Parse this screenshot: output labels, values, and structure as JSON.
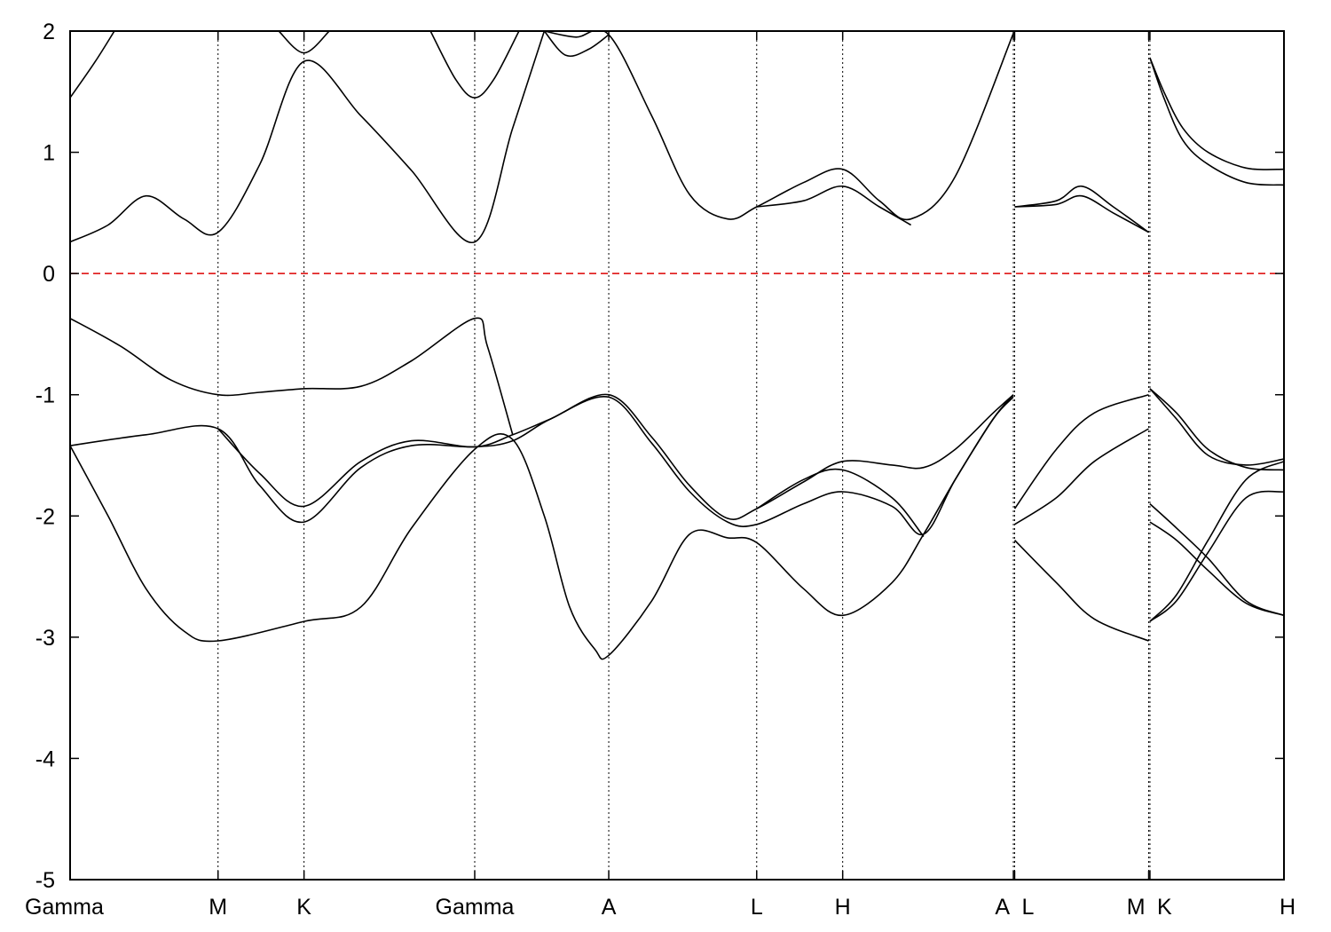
{
  "chart_data": {
    "type": "line",
    "title": "",
    "xlabel": "",
    "ylabel": "",
    "ylim": [
      -5,
      2
    ],
    "yticks": [
      -5,
      -4,
      -3,
      -2,
      -1,
      0,
      1,
      2
    ],
    "grid": "vertical dotted lines at high-symmetry points",
    "legend": "none",
    "high_symmetry_points": [
      {
        "label": "Gamma",
        "x": 0
      },
      {
        "label": "M",
        "x": 1.17
      },
      {
        "label": "K",
        "x": 1.85
      },
      {
        "label": "Gamma",
        "x": 3.2
      },
      {
        "label": "A",
        "x": 4.26
      },
      {
        "label": "L",
        "x": 5.43
      },
      {
        "label": "H",
        "x": 6.11
      },
      {
        "label": "A",
        "x": 7.46
      },
      {
        "label": "L",
        "x": 7.47
      },
      {
        "label": "M",
        "x": 8.53
      },
      {
        "label": "K",
        "x": 8.54
      },
      {
        "label": "H",
        "x": 9.6
      }
    ],
    "fermi_level": {
      "y": 0,
      "color": "#dd0000"
    },
    "bands": [
      {
        "x": [
          0,
          0.3,
          0.6,
          0.9,
          1.17,
          1.85,
          2.3,
          2.7,
          3.2,
          3.5,
          3.75,
          3.95,
          4.15,
          4.26,
          4.6,
          4.9,
          5.2,
          5.43,
          5.8,
          6.11,
          6.5,
          6.75,
          7.0,
          7.3,
          7.46
        ],
        "y": [
          -1.42,
          -2.0,
          -2.6,
          -2.95,
          -3.03,
          -2.87,
          -2.75,
          -2.1,
          -1.45,
          -1.37,
          -2.0,
          -2.75,
          -3.1,
          -3.15,
          -2.7,
          -2.15,
          -2.18,
          -2.22,
          -2.6,
          -2.82,
          -2.55,
          -2.15,
          -1.7,
          -1.2,
          -1.0
        ]
      },
      {
        "x": [
          0,
          0.6,
          1.17,
          1.5,
          1.85,
          2.3,
          2.7,
          3.2,
          3.5,
          3.8,
          4.26,
          4.6,
          4.9,
          5.2,
          5.43,
          5.8,
          6.11,
          6.5,
          6.75,
          7.0,
          7.3,
          7.46
        ],
        "y": [
          -1.42,
          -1.33,
          -1.28,
          -1.75,
          -2.05,
          -1.6,
          -1.42,
          -1.43,
          -1.38,
          -1.2,
          -1.02,
          -1.4,
          -1.8,
          -2.05,
          -2.07,
          -1.9,
          -1.8,
          -1.92,
          -2.15,
          -1.7,
          -1.2,
          -1.02
        ]
      },
      {
        "x": [
          1.17,
          1.5,
          1.85,
          2.3,
          2.7,
          3.2,
          3.5,
          3.8,
          4.26,
          4.6,
          4.9,
          5.2,
          5.43,
          5.8,
          6.11,
          6.5,
          6.75,
          7.0,
          7.3,
          7.46
        ],
        "y": [
          -1.28,
          -1.65,
          -1.92,
          -1.55,
          -1.38,
          -1.43,
          -1.33,
          -1.2,
          -1.0,
          -1.35,
          -1.75,
          -2.02,
          -1.94,
          -1.72,
          -1.55,
          -1.58,
          -1.6,
          -1.45,
          -1.15,
          -1.0
        ]
      },
      {
        "x": [
          5.43,
          5.8,
          6.11,
          6.5,
          6.75
        ],
        "y": [
          -1.94,
          -1.7,
          -1.62,
          -1.85,
          -2.17
        ]
      },
      {
        "x": [
          0,
          0.4,
          0.8,
          1.17,
          1.5,
          1.85,
          2.3,
          2.7,
          3.2,
          3.3,
          3.5
        ],
        "y": [
          -0.37,
          -0.6,
          -0.88,
          -1.0,
          -0.98,
          -0.95,
          -0.93,
          -0.72,
          -0.37,
          -0.6,
          -1.33
        ]
      },
      {
        "x": [
          0,
          0.3,
          0.6,
          0.9,
          1.17,
          1.5,
          1.85,
          2.3,
          2.7,
          3.2,
          3.5,
          3.75
        ],
        "y": [
          0.26,
          0.4,
          0.64,
          0.45,
          0.34,
          0.9,
          1.75,
          1.3,
          0.85,
          0.26,
          1.2,
          2.0
        ]
      },
      {
        "x": [
          3.75,
          4.0,
          4.26,
          4.6,
          4.9,
          5.2,
          5.43,
          5.8,
          6.11,
          6.4,
          6.65,
          7.0,
          7.46
        ],
        "y": [
          2.0,
          1.95,
          1.97,
          1.3,
          0.65,
          0.45,
          0.55,
          0.75,
          0.86,
          0.6,
          0.45,
          0.8,
          1.98
        ]
      },
      {
        "x": [
          5.43,
          5.8,
          6.11,
          6.4,
          6.65
        ],
        "y": [
          0.55,
          0.6,
          0.72,
          0.55,
          0.4
        ]
      },
      {
        "x": [
          0,
          0.2,
          0.35
        ],
        "y": [
          1.45,
          1.75,
          2.0
        ]
      },
      {
        "x": [
          2.85,
          3.05,
          3.2,
          3.35,
          3.55
        ],
        "y": [
          2.0,
          1.6,
          1.45,
          1.6,
          2.0
        ]
      },
      {
        "x": [
          1.65,
          1.85,
          2.05
        ],
        "y": [
          2.0,
          1.82,
          2.0
        ]
      },
      {
        "x": [
          3.75,
          3.92,
          4.1,
          4.26
        ],
        "y": [
          2.0,
          1.8,
          1.85,
          1.97
        ]
      },
      {
        "x": [
          7.47,
          7.8,
          8.0,
          8.25,
          8.53
        ],
        "y": [
          0.55,
          0.6,
          0.72,
          0.55,
          0.34
        ]
      },
      {
        "x": [
          7.47,
          7.8,
          8.0,
          8.25,
          8.53
        ],
        "y": [
          0.55,
          0.57,
          0.64,
          0.5,
          0.34
        ]
      },
      {
        "x": [
          7.47,
          7.8,
          8.1,
          8.53
        ],
        "y": [
          -1.94,
          -1.45,
          -1.15,
          -1.0
        ]
      },
      {
        "x": [
          7.47,
          7.8,
          8.1,
          8.53
        ],
        "y": [
          -2.07,
          -1.85,
          -1.55,
          -1.28
        ]
      },
      {
        "x": [
          7.47,
          7.8,
          8.1,
          8.53
        ],
        "y": [
          -2.2,
          -2.55,
          -2.85,
          -3.03
        ]
      },
      {
        "x": [
          8.54,
          8.65,
          8.8,
          9.0,
          9.3,
          9.6
        ],
        "y": [
          1.78,
          1.5,
          1.2,
          1.0,
          0.87,
          0.86
        ]
      },
      {
        "x": [
          8.54,
          8.65,
          8.8,
          9.0,
          9.3,
          9.6
        ],
        "y": [
          1.78,
          1.45,
          1.1,
          0.9,
          0.75,
          0.73
        ]
      },
      {
        "x": [
          8.54,
          8.75,
          9.0,
          9.3,
          9.6
        ],
        "y": [
          -0.95,
          -1.15,
          -1.45,
          -1.6,
          -1.62
        ]
      },
      {
        "x": [
          8.54,
          8.75,
          9.0,
          9.3,
          9.6
        ],
        "y": [
          -0.95,
          -1.2,
          -1.5,
          -1.58,
          -1.53
        ]
      },
      {
        "x": [
          8.54,
          8.75,
          9.0,
          9.3,
          9.6
        ],
        "y": [
          -1.9,
          -2.1,
          -2.35,
          -2.7,
          -2.82
        ]
      },
      {
        "x": [
          8.54,
          8.75,
          9.0,
          9.3,
          9.6
        ],
        "y": [
          -2.05,
          -2.2,
          -2.45,
          -2.72,
          -2.82
        ]
      },
      {
        "x": [
          8.54,
          8.75,
          9.0,
          9.3,
          9.6
        ],
        "y": [
          -2.87,
          -2.7,
          -2.3,
          -1.85,
          -1.8
        ]
      },
      {
        "x": [
          8.54,
          8.75,
          9.0,
          9.3,
          9.6
        ],
        "y": [
          -2.87,
          -2.65,
          -2.2,
          -1.7,
          -1.55
        ]
      }
    ]
  }
}
